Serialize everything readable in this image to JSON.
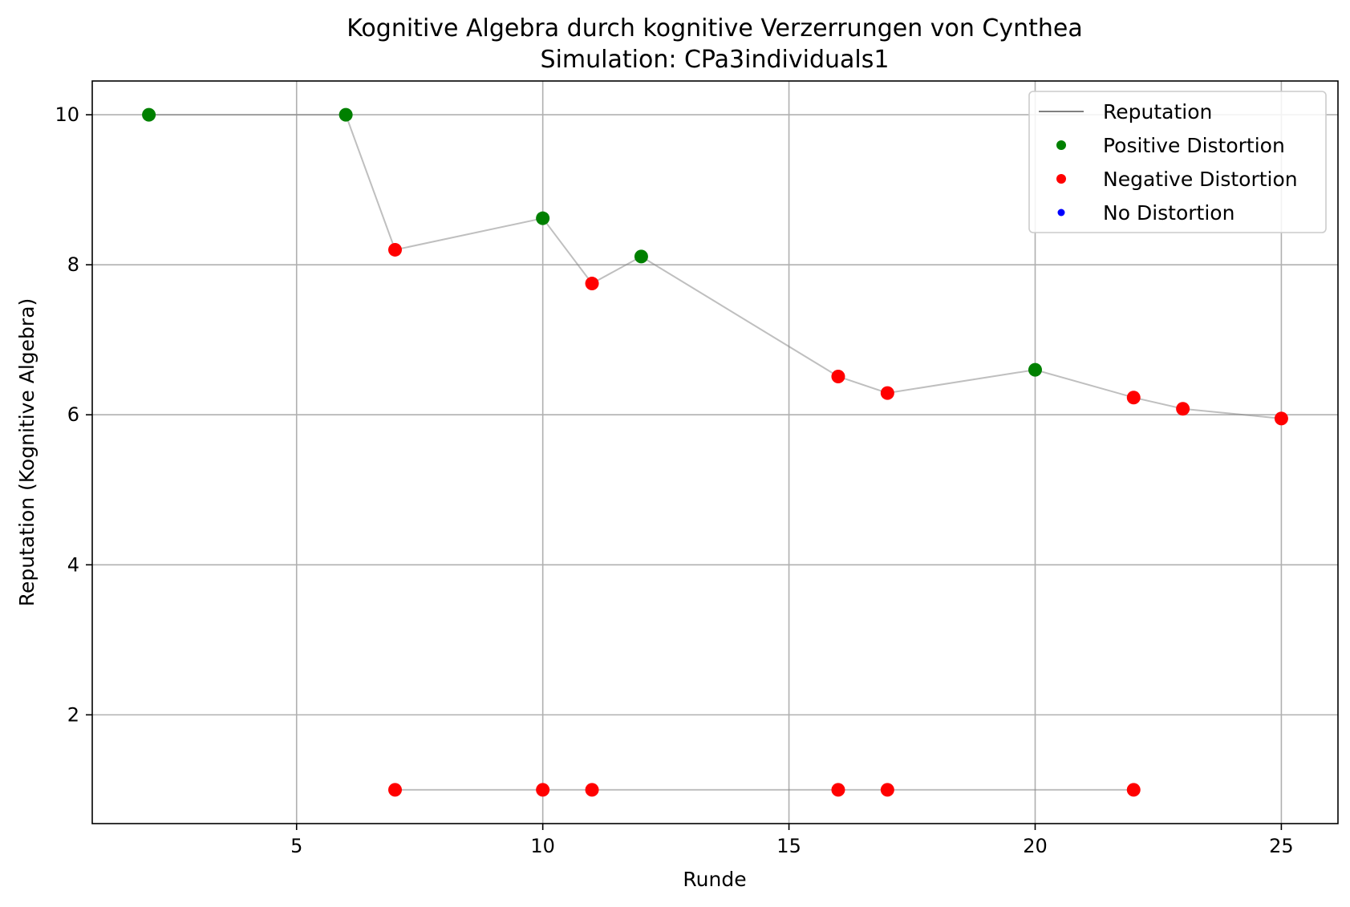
{
  "chart_data": {
    "type": "scatter",
    "title": "Kognitive Algebra durch kognitive Verzerrungen von Cynthea",
    "subtitle": "Simulation: CPa3individuals1",
    "xlabel": "Runde",
    "ylabel": "Reputation (Kognitive Algebra)",
    "xlim": [
      0.85,
      26.15
    ],
    "ylim": [
      0.55,
      10.45
    ],
    "xticks": [
      5,
      10,
      15,
      20,
      25
    ],
    "yticks": [
      2,
      4,
      6,
      8,
      10
    ],
    "grid": true,
    "legend_position": "top-right",
    "colors": {
      "reputation_line": "#808080",
      "positive": "#008000",
      "negative": "#ff0000",
      "none": "#0000ff"
    },
    "legend": [
      {
        "label": "Reputation",
        "kind": "line",
        "color": "#808080"
      },
      {
        "label": "Positive Distortion",
        "kind": "marker",
        "color": "#008000"
      },
      {
        "label": "Negative Distortion",
        "kind": "marker",
        "color": "#ff0000"
      },
      {
        "label": "No Distortion",
        "kind": "marker",
        "color": "#0000ff"
      }
    ],
    "series": [
      {
        "points": [
          {
            "x": 2,
            "y": 10.0,
            "distortion": "positive"
          },
          {
            "x": 6,
            "y": 10.0,
            "distortion": "positive"
          },
          {
            "x": 7,
            "y": 8.2,
            "distortion": "negative"
          },
          {
            "x": 10,
            "y": 8.62,
            "distortion": "positive"
          },
          {
            "x": 11,
            "y": 7.75,
            "distortion": "negative"
          },
          {
            "x": 12,
            "y": 8.11,
            "distortion": "positive"
          },
          {
            "x": 16,
            "y": 6.51,
            "distortion": "negative"
          },
          {
            "x": 17,
            "y": 6.29,
            "distortion": "negative"
          },
          {
            "x": 20,
            "y": 6.6,
            "distortion": "positive"
          },
          {
            "x": 22,
            "y": 6.23,
            "distortion": "negative"
          },
          {
            "x": 23,
            "y": 6.08,
            "distortion": "negative"
          },
          {
            "x": 25,
            "y": 5.95,
            "distortion": "negative"
          }
        ]
      },
      {
        "points": [
          {
            "x": 7,
            "y": 1.0,
            "distortion": "negative"
          },
          {
            "x": 10,
            "y": 1.0,
            "distortion": "negative"
          },
          {
            "x": 11,
            "y": 1.0,
            "distortion": "negative"
          },
          {
            "x": 16,
            "y": 1.0,
            "distortion": "negative"
          },
          {
            "x": 17,
            "y": 1.0,
            "distortion": "negative"
          },
          {
            "x": 22,
            "y": 1.0,
            "distortion": "negative"
          }
        ]
      }
    ]
  }
}
